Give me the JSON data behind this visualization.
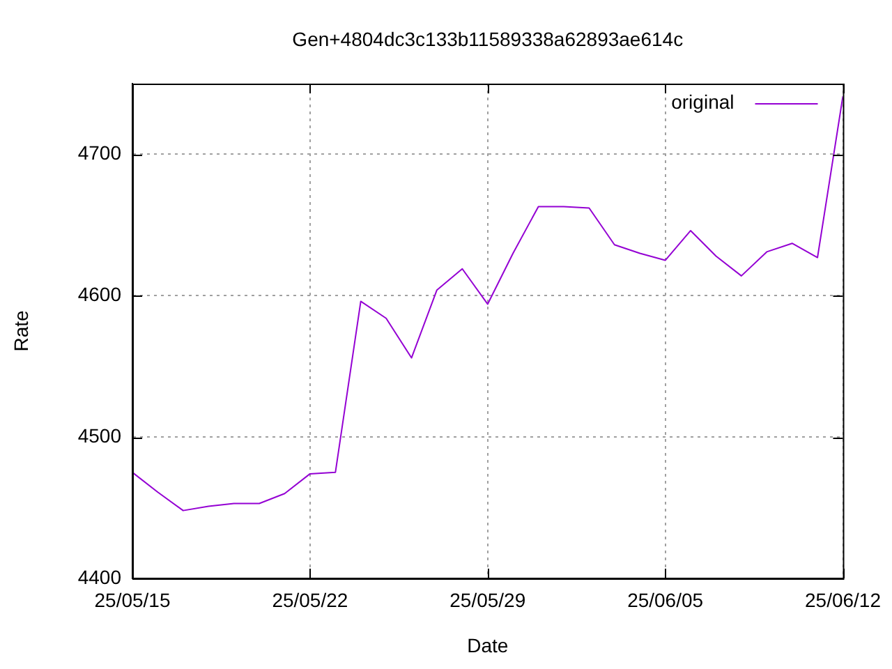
{
  "chart_data": {
    "type": "line",
    "title": "Gen+4804dc3c133b11589338a62893ae614c",
    "xlabel": "Date",
    "ylabel": "Rate",
    "x": [
      "--05-15",
      "--05-16",
      "--05-17",
      "--05-18",
      "--05-19",
      "--05-20",
      "--05-21",
      "--05-22",
      "--05-23",
      "--05-24",
      "--05-25",
      "--05-26",
      "--05-27",
      "--05-28",
      "--05-29",
      "--05-30",
      "--05-31",
      "--06-01",
      "--06-02",
      "--06-03",
      "--06-04",
      "--06-05",
      "--06-06",
      "--06-07",
      "--06-08",
      "--06-09",
      "--06-10",
      "--06-11",
      "--06-12"
    ],
    "series": [
      {
        "name": "original",
        "color": "#9400d3",
        "values": [
          4475,
          4461,
          4448,
          4451,
          4453,
          4453,
          4460,
          4474,
          4475,
          4596,
          4584,
          4556,
          4604,
          4619,
          4594,
          4630,
          4663,
          4663,
          4662,
          4636,
          4630,
          4625,
          4646,
          4628,
          4614,
          4631,
          4637,
          4627,
          4741
        ]
      }
    ],
    "xlim": [
      "--05-15",
      "--06-12"
    ],
    "xticks": [
      {
        "value": "--05-15",
        "label": "25/05/15"
      },
      {
        "value": "--05-22",
        "label": "25/05/22"
      },
      {
        "value": "--05-29",
        "label": "25/05/29"
      },
      {
        "value": "--06-05",
        "label": "25/06/05"
      },
      {
        "value": "--06-12",
        "label": "25/06/12"
      }
    ],
    "ylim": [
      4400,
      4750
    ],
    "yticks": [
      4400,
      4500,
      4600,
      4700
    ],
    "grid": true,
    "legend": "top right",
    "marker": "none",
    "line_style": "solid"
  }
}
